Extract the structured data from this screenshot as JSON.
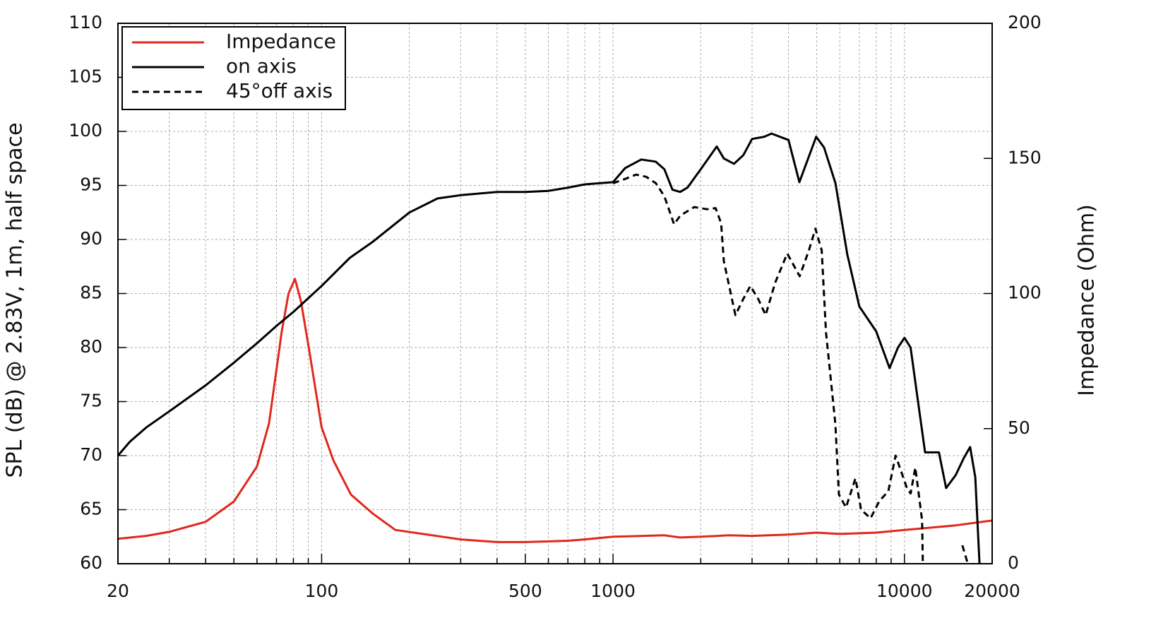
{
  "chart_data": {
    "type": "line",
    "xscale": "log",
    "grid": true,
    "legend": "top-left",
    "ylabel": "SPL (dB) @ 2.83V, 1m, half space",
    "y2label": "Impedance (Ohm)",
    "xlim": [
      20,
      20000
    ],
    "xticks": [
      20,
      100,
      500,
      1000,
      10000,
      20000
    ],
    "xgrid": [
      30,
      40,
      50,
      60,
      70,
      80,
      90,
      200,
      300,
      400,
      600,
      700,
      800,
      900,
      2000,
      3000,
      4000,
      5000,
      6000,
      7000,
      8000,
      9000
    ],
    "ylim": [
      60,
      110
    ],
    "yticks": [
      60,
      65,
      70,
      75,
      80,
      85,
      90,
      95,
      100,
      105,
      110
    ],
    "y2lim": [
      0,
      200
    ],
    "y2ticks": [
      0,
      50,
      100,
      150,
      200
    ],
    "series": [
      {
        "name": "Impedance",
        "color": "#e0281c",
        "axis": "y2",
        "dashed": false,
        "x": [
          20,
          25,
          30,
          40,
          50,
          60,
          66,
          73,
          77,
          81,
          85,
          91,
          100,
          110,
          126,
          150,
          179,
          300,
          400,
          500,
          700,
          800,
          1000,
          1500,
          1700,
          2000,
          2500,
          3000,
          4000,
          5000,
          6000,
          8000,
          10000,
          15000,
          20000
        ],
        "values": [
          9.2,
          10.3,
          11.8,
          15.5,
          23,
          36,
          52,
          86,
          100,
          105.4,
          97,
          78,
          50.5,
          38,
          25.6,
          18.5,
          12.5,
          9,
          8,
          8,
          8.5,
          9,
          10,
          10.5,
          9.7,
          10,
          10.5,
          10.3,
          10.8,
          11.5,
          11,
          11.5,
          12.5,
          14.2,
          16
        ]
      },
      {
        "name": "on axis",
        "color": "#000000",
        "dashed": false,
        "x": [
          20,
          22,
          25,
          30,
          40,
          50,
          60,
          70,
          80,
          100,
          125,
          150,
          200,
          250,
          300,
          400,
          500,
          600,
          700,
          800,
          1000,
          1100,
          1250,
          1400,
          1500,
          1600,
          1700,
          1800,
          2000,
          2270,
          2400,
          2600,
          2800,
          3000,
          3300,
          3500,
          4000,
          4360,
          4980,
          5300,
          5800,
          6370,
          7000,
          8000,
          8890,
          9500,
          10000,
          10500,
          11000,
          11770,
          13130,
          13900,
          15000,
          16000,
          16800,
          17500,
          18100
        ],
        "values": [
          70,
          71.3,
          72.6,
          74.1,
          76.5,
          78.6,
          80.4,
          82,
          83.3,
          85.7,
          88.3,
          89.8,
          92.5,
          93.8,
          94.1,
          94.4,
          94.4,
          94.5,
          94.8,
          95.1,
          95.3,
          96.6,
          97.4,
          97.2,
          96.5,
          94.6,
          94.4,
          94.8,
          96.5,
          98.6,
          97.5,
          97,
          97.8,
          99.3,
          99.5,
          99.8,
          99.2,
          95.3,
          99.5,
          98.5,
          95.2,
          88.6,
          83.8,
          81.5,
          78.1,
          80,
          80.9,
          80,
          76,
          70.3,
          70.3,
          67,
          68.2,
          69.8,
          70.8,
          68,
          60
        ]
      },
      {
        "name": "45°off axis",
        "color": "#000000",
        "dashed": true,
        "x": [
          1000,
          1100,
          1200,
          1300,
          1403,
          1500,
          1620,
          1700,
          1900,
          2100,
          2250,
          2350,
          2400,
          2630,
          2800,
          2960,
          3150,
          3340,
          3600,
          3960,
          4370,
          4700,
          4950,
          5200,
          5380,
          5795,
          5960,
          6300,
          6790,
          7100,
          7650,
          8200,
          8800,
          9330,
          10200,
          10500,
          10900,
          11500,
          11560,
          15000,
          15800,
          16500
        ],
        "values": [
          95.2,
          95.6,
          96,
          95.8,
          95.2,
          94,
          91.4,
          92.2,
          93,
          92.8,
          92.9,
          91.5,
          88,
          83,
          84.5,
          85.7,
          84.5,
          83,
          86,
          88.7,
          86.6,
          89,
          91,
          89,
          81.4,
          72.9,
          66.4,
          65.2,
          67.9,
          65,
          64.2,
          65.8,
          66.7,
          70,
          67,
          66.5,
          68.9,
          64,
          60,
          null,
          61.7,
          60
        ]
      }
    ]
  }
}
